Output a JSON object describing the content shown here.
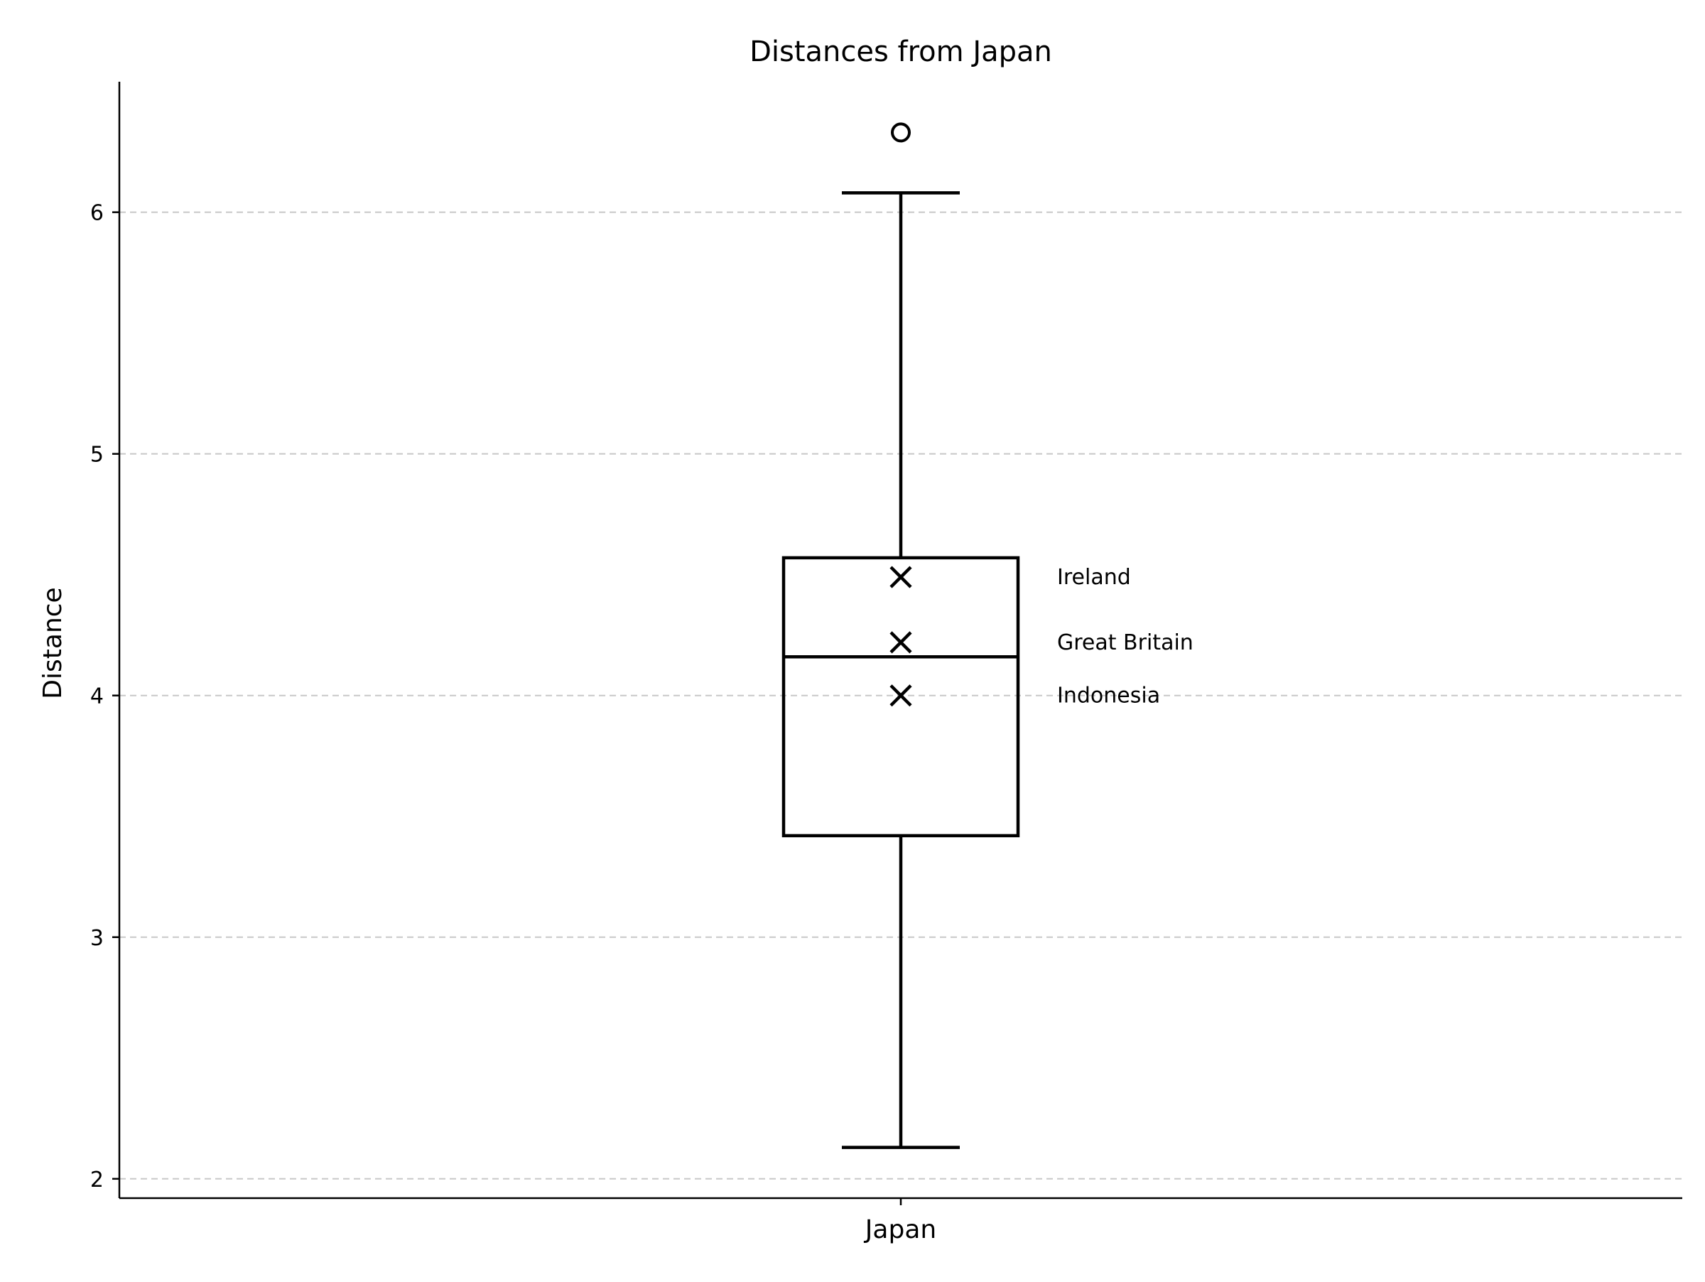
{
  "chart_data": {
    "type": "box",
    "title": "Distances from Japan",
    "xlabel": "",
    "ylabel": "Distance",
    "categories": [
      "Japan"
    ],
    "ylim": [
      1.92,
      6.54
    ],
    "yticks": [
      2,
      3,
      4,
      5,
      6
    ],
    "grid": {
      "y": true,
      "x": false,
      "style": "dashed"
    },
    "boxes": [
      {
        "category": "Japan",
        "whisker_low": 2.13,
        "q1": 3.42,
        "median": 4.16,
        "q3": 4.57,
        "whisker_high": 6.08,
        "outliers": [
          6.33
        ]
      }
    ],
    "highlighted_points": [
      {
        "label": "Ireland",
        "value": 4.49
      },
      {
        "label": "Great Britain",
        "value": 4.22
      },
      {
        "label": "Indonesia",
        "value": 4.0
      }
    ]
  },
  "colors": {
    "box": "#000000",
    "grid": "#c8c8c8",
    "axis": "#000000"
  }
}
